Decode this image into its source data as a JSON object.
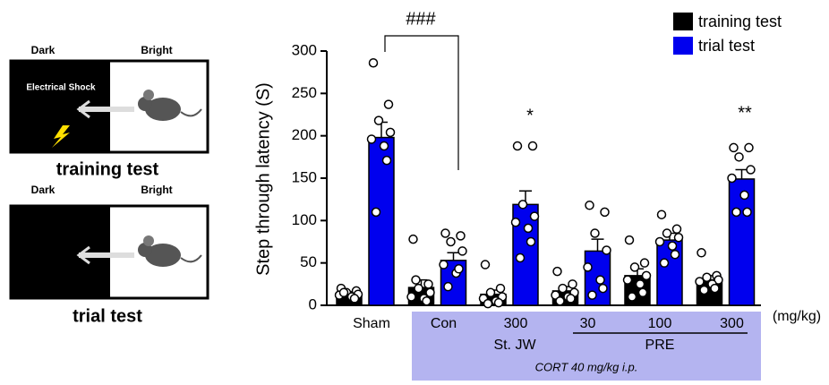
{
  "diagram": {
    "training": {
      "dark": "Dark",
      "bright": "Bright",
      "shock": "Electrical Shock",
      "caption": "training test"
    },
    "trial": {
      "dark": "Dark",
      "bright": "Bright",
      "caption": "trial test"
    }
  },
  "chart_data": {
    "type": "bar",
    "y_label": "Step through latency (S)",
    "categories": [
      "Sham",
      "Con",
      "300",
      "30",
      "100",
      "300"
    ],
    "group_labels": [
      "St. JW",
      "PRE"
    ],
    "unit_label": "(mg/kg)",
    "treatment_label": "CORT 40 mg/kg i.p.",
    "annotations": [
      "###",
      "*",
      "**"
    ],
    "ylim": [
      0,
      300
    ],
    "yticks": [
      0,
      50,
      100,
      150,
      200,
      250,
      300
    ],
    "series": [
      {
        "name": "training test",
        "color": "#000000",
        "values": [
          13,
          21,
          13,
          17,
          35,
          30
        ],
        "errors": [
          3,
          9,
          5,
          5,
          8,
          5
        ],
        "points": [
          [
            20,
            17,
            15,
            13,
            12,
            10,
            8,
            15
          ],
          [
            78,
            25,
            20,
            15,
            10,
            8,
            5,
            30
          ],
          [
            48,
            20,
            15,
            10,
            8,
            5,
            3,
            2
          ],
          [
            40,
            25,
            20,
            15,
            12,
            10,
            8,
            5
          ],
          [
            77,
            50,
            45,
            35,
            30,
            25,
            15,
            10
          ],
          [
            62,
            35,
            33,
            30,
            28,
            25,
            20,
            18
          ]
        ]
      },
      {
        "name": "trial test",
        "color": "#0000ee",
        "values": [
          198,
          53,
          119,
          64,
          77,
          149
        ],
        "errors": [
          18,
          9,
          16,
          14,
          8,
          11
        ],
        "points": [
          [
            286,
            237,
            218,
            204,
            196,
            188,
            171,
            110
          ],
          [
            85,
            82,
            75,
            64,
            48,
            38,
            43,
            22
          ],
          [
            188,
            188,
            119,
            105,
            98,
            91,
            75,
            56
          ],
          [
            118,
            110,
            85,
            65,
            45,
            30,
            20,
            12
          ],
          [
            107,
            90,
            85,
            80,
            75,
            70,
            60,
            50
          ],
          [
            186,
            186,
            175,
            160,
            150,
            130,
            110,
            110
          ]
        ]
      }
    ]
  }
}
